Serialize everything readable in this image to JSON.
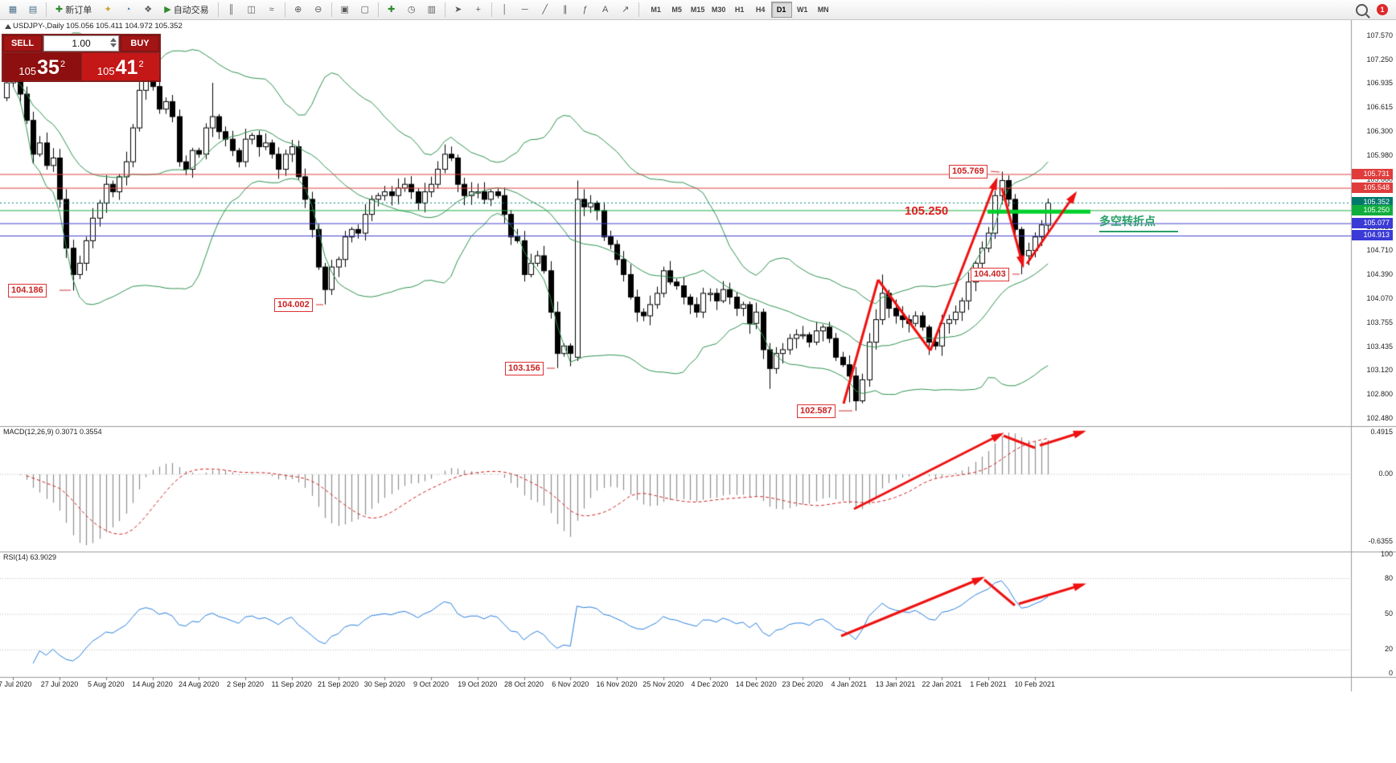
{
  "toolbar": {
    "new_order": "新订单",
    "autotrading": "自动交易",
    "timeframes": [
      "M1",
      "M5",
      "M15",
      "M30",
      "H1",
      "H4",
      "D1",
      "W1",
      "MN"
    ],
    "active_timeframe": "D1",
    "notification_badge": "1",
    "items": [
      {
        "t": "icon",
        "name": "new-chart-icon",
        "g": "▦",
        "c": "#4a708b"
      },
      {
        "t": "icon",
        "name": "profiles-icon",
        "g": "▤",
        "c": "#4a708b"
      },
      {
        "t": "sep"
      },
      {
        "t": "btn",
        "name": "new-order-button",
        "g": "✚",
        "c": "#2e8b2e",
        "label_key": "new_order"
      },
      {
        "t": "icon",
        "name": "expert-advisors-icon",
        "g": "✦",
        "c": "#c9a227"
      },
      {
        "t": "icon",
        "name": "market-watch-icon",
        "g": "◔",
        "c": "#2f6fb3"
      },
      {
        "t": "icon",
        "name": "data-window-icon",
        "g": "❖",
        "c": "#5a5a5a"
      },
      {
        "t": "btn",
        "name": "autotrading-button",
        "g": "▶",
        "c": "#2e8b2e",
        "label_key": "autotrading"
      },
      {
        "t": "sep"
      },
      {
        "t": "icon",
        "name": "bars-chart-mode-icon",
        "g": "║",
        "c": "#5a5a5a"
      },
      {
        "t": "icon",
        "name": "candlestick-mode-icon",
        "g": "◫",
        "c": "#5a5a5a"
      },
      {
        "t": "icon",
        "name": "line-chart-mode-icon",
        "g": "≈",
        "c": "#5a5a5a"
      },
      {
        "t": "sep"
      },
      {
        "t": "icon",
        "name": "zoom-in-icon",
        "g": "⊕",
        "c": "#5a5a5a"
      },
      {
        "t": "icon",
        "name": "zoom-out-icon",
        "g": "⊖",
        "c": "#5a5a5a"
      },
      {
        "t": "sep"
      },
      {
        "t": "icon",
        "name": "tile-windows-icon",
        "g": "▣",
        "c": "#5a5a5a"
      },
      {
        "t": "icon",
        "name": "cascade-windows-icon",
        "g": "▢",
        "c": "#5a5a5a"
      },
      {
        "t": "sep"
      },
      {
        "t": "icon",
        "name": "indicators-icon",
        "g": "✚",
        "c": "#2e8b2e"
      },
      {
        "t": "icon",
        "name": "periods-icon",
        "g": "◷",
        "c": "#5a5a5a"
      },
      {
        "t": "icon",
        "name": "templates-icon",
        "g": "▥",
        "c": "#5a5a5a"
      },
      {
        "t": "sep"
      },
      {
        "t": "icon",
        "name": "cursor-icon",
        "g": "➤",
        "c": "#5a5a5a"
      },
      {
        "t": "icon",
        "name": "crosshair-icon",
        "g": "+",
        "c": "#5a5a5a"
      },
      {
        "t": "sep"
      },
      {
        "t": "icon",
        "name": "vertical-line-icon",
        "g": "│",
        "c": "#5a5a5a"
      },
      {
        "t": "icon",
        "name": "horizontal-line-icon",
        "g": "─",
        "c": "#5a5a5a"
      },
      {
        "t": "icon",
        "name": "trendline-icon",
        "g": "╱",
        "c": "#5a5a5a"
      },
      {
        "t": "icon",
        "name": "equidistant-channel-icon",
        "g": "∥",
        "c": "#5a5a5a"
      },
      {
        "t": "icon",
        "name": "fibonacci-icon",
        "g": "ƒ",
        "c": "#5a5a5a"
      },
      {
        "t": "icon",
        "name": "text-label-icon",
        "g": "A",
        "c": "#5a5a5a"
      },
      {
        "t": "icon",
        "name": "arrows-icon",
        "g": "↗",
        "c": "#5a5a5a"
      },
      {
        "t": "sep"
      }
    ]
  },
  "chart": {
    "title": "USDJPY-,Daily 105.056 105.411 104.972 105.352",
    "one_click": {
      "sell": "SELL",
      "buy": "BUY",
      "volume": "1.00",
      "sell_price_main": "105",
      "sell_price_big": "35",
      "sell_price_sup": "2",
      "buy_price_main": "105",
      "buy_price_big": "41",
      "buy_price_sup": "2"
    },
    "flags": [
      {
        "text": "104.186"
      },
      {
        "text": "104.002"
      },
      {
        "text": "103.156"
      },
      {
        "text": "102.587"
      },
      {
        "text": "105.769"
      },
      {
        "text": "104.403"
      }
    ],
    "level_text": "105.250",
    "support_note": "多空转折点",
    "axis_ticks": [
      "107.570",
      "107.250",
      "106.935",
      "106.615",
      "106.300",
      "105.980",
      "105.660",
      "105.340",
      "105.020",
      "104.710",
      "104.390",
      "104.070",
      "103.755",
      "103.435",
      "103.120",
      "102.800",
      "102.480"
    ],
    "line_labels": [
      {
        "text": "105.731",
        "bg": "#e03c3c"
      },
      {
        "text": "105.548",
        "bg": "#e03c3c"
      },
      {
        "text": "105.352",
        "bg": "#00796b"
      },
      {
        "text": "105.250",
        "bg": "#0fae3c"
      },
      {
        "text": "105.077",
        "bg": "#3a3ad6"
      },
      {
        "text": "104.913",
        "bg": "#3a3ad6"
      }
    ],
    "macd": {
      "header": "MACD(12,26,9) 0.3071 0.3554",
      "max_label": "0.4915",
      "zero_label": "0.00",
      "min_label": "-0.6355"
    },
    "rsi": {
      "header": "RSI(14) 63.9029",
      "levels": [
        "100",
        "80",
        "50",
        "20",
        "0"
      ]
    },
    "dates": [
      "17 Jul 2020",
      "27 Jul 2020",
      "5 Aug 2020",
      "14 Aug 2020",
      "24 Aug 2020",
      "2 Sep 2020",
      "11 Sep 2020",
      "21 Sep 2020",
      "30 Sep 2020",
      "9 Oct 2020",
      "19 Oct 2020",
      "28 Oct 2020",
      "6 Nov 2020",
      "16 Nov 2020",
      "25 Nov 2020",
      "4 Dec 2020",
      "14 Dec 2020",
      "23 Dec 2020",
      "4 Jan 2021",
      "13 Jan 2021",
      "22 Jan 2021",
      "1 Feb 2021",
      "10 Feb 2021"
    ]
  },
  "chart_data": {
    "type": "candlestick",
    "symbol": "USDJPY-",
    "timeframe": "Daily",
    "current": {
      "open": 105.056,
      "high": 105.411,
      "low": 104.972,
      "close": 105.352,
      "bid": "105.35",
      "ask": "105.41"
    },
    "price_axis": {
      "min": 102.48,
      "max": 107.57
    },
    "indicators": [
      {
        "name": "Bollinger Bands",
        "period": 20,
        "deviation": 2
      },
      {
        "name": "MACD",
        "fast": 12,
        "slow": 26,
        "signal": 9,
        "main": 0.3071,
        "signal_value": 0.3554,
        "scale_max": 0.4915,
        "scale_min": -0.6355
      },
      {
        "name": "RSI",
        "period": 14,
        "value": 63.9029,
        "levels": [
          80,
          50,
          20
        ]
      }
    ],
    "levels": {
      "resistance": [
        105.731,
        105.548
      ],
      "pivot": 105.25,
      "current": 105.352,
      "support": [
        105.077,
        104.913
      ]
    },
    "annotated_extremes": [
      104.186,
      104.002,
      103.156,
      102.587,
      105.769,
      104.403
    ],
    "closes": [
      106.95,
      107.05,
      106.8,
      106.45,
      106.0,
      106.15,
      105.85,
      105.95,
      105.4,
      104.75,
      104.4,
      104.55,
      104.85,
      105.15,
      105.35,
      105.6,
      105.5,
      105.7,
      105.9,
      106.35,
      106.85,
      107.0,
      106.9,
      106.6,
      106.7,
      106.5,
      105.9,
      105.8,
      106.05,
      106.0,
      106.35,
      106.5,
      106.3,
      106.2,
      106.05,
      105.9,
      106.2,
      106.25,
      106.1,
      106.15,
      106.0,
      105.8,
      106.0,
      106.1,
      105.7,
      105.4,
      105.0,
      104.5,
      104.2,
      104.5,
      104.6,
      104.9,
      105.0,
      104.95,
      105.2,
      105.4,
      105.45,
      105.5,
      105.45,
      105.55,
      105.6,
      105.5,
      105.35,
      105.5,
      105.6,
      105.8,
      106.0,
      105.95,
      105.6,
      105.45,
      105.5,
      105.5,
      105.4,
      105.5,
      105.45,
      105.2,
      104.9,
      104.85,
      104.4,
      104.55,
      104.65,
      104.45,
      103.9,
      103.35,
      103.45,
      103.35,
      105.4,
      105.3,
      105.35,
      105.25,
      104.9,
      104.8,
      104.6,
      104.4,
      104.1,
      103.9,
      103.85,
      104.0,
      104.15,
      104.45,
      104.3,
      104.25,
      104.1,
      104.0,
      103.9,
      104.15,
      104.15,
      104.05,
      104.2,
      104.1,
      103.95,
      104.0,
      103.75,
      103.9,
      103.4,
      103.15,
      103.35,
      103.4,
      103.55,
      103.6,
      103.6,
      103.5,
      103.65,
      103.7,
      103.55,
      103.3,
      103.2,
      103.05,
      102.72,
      103.0,
      103.5,
      103.8,
      104.15,
      103.95,
      103.85,
      103.8,
      103.75,
      103.85,
      103.7,
      103.5,
      103.45,
      103.75,
      103.8,
      103.9,
      104.05,
      104.3,
      104.55,
      104.75,
      104.95,
      105.45,
      105.65,
      105.4,
      105.0,
      104.65,
      104.72,
      104.9,
      105.06,
      105.352
    ],
    "overrides": {
      "10": {
        "low": 104.186
      },
      "31": {
        "high": 106.95
      },
      "48": {
        "low": 104.002
      },
      "83": {
        "low": 103.156
      },
      "85": {
        "low": 103.18
      },
      "86": {
        "open": 103.3,
        "low": 103.25,
        "high": 105.65
      },
      "115": {
        "low": 102.88
      },
      "127": {
        "low": 102.7
      },
      "128": {
        "low": 102.587
      },
      "132": {
        "high": 104.4
      },
      "139": {
        "low": 103.33
      },
      "150": {
        "high": 105.769
      },
      "153": {
        "low": 104.403
      },
      "157": {
        "open": 105.056,
        "high": 105.411,
        "low": 104.972
      }
    }
  }
}
